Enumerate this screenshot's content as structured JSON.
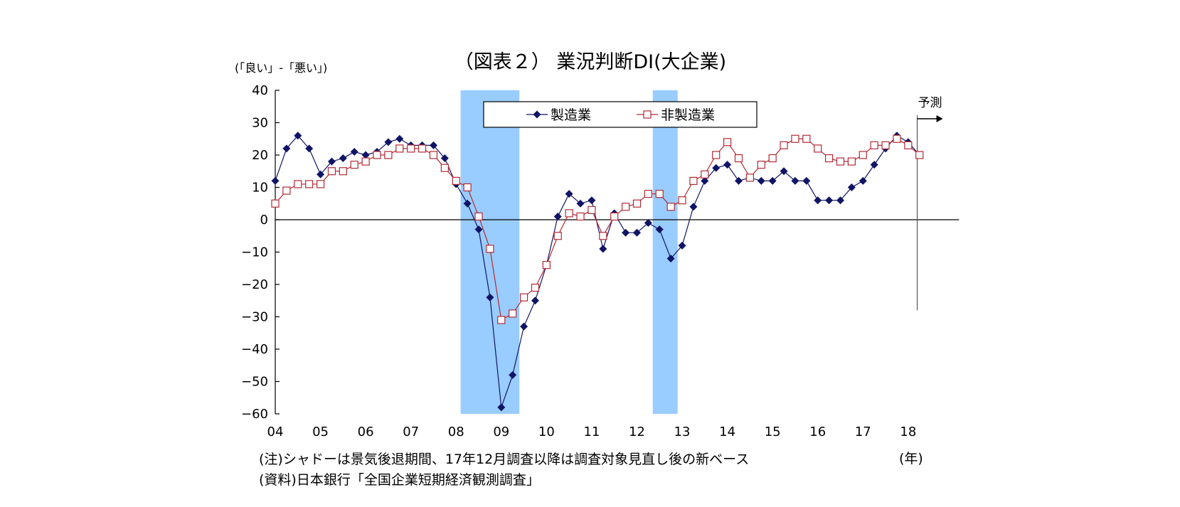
{
  "chart_data": {
    "type": "line",
    "title": "（図表２） 業況判断DI(大企業)",
    "ylabel": "(「良い」-「悪い」)",
    "xlabel": "(年)",
    "ylim": [
      -60,
      40
    ],
    "yticks": [
      40,
      30,
      20,
      10,
      0,
      -10,
      -20,
      -30,
      -40,
      -50,
      -60
    ],
    "ytick_labels": [
      "40",
      "30",
      "20",
      "10",
      "0",
      "−10",
      "−20",
      "−30",
      "−40",
      "−50",
      "−60"
    ],
    "year_labels": [
      "04",
      "05",
      "06",
      "07",
      "08",
      "09",
      "10",
      "11",
      "12",
      "13",
      "14",
      "15",
      "16",
      "17",
      "18"
    ],
    "x_start": "2004Q1",
    "grid": false,
    "legend_position": "top-center",
    "forecast_label": "予測",
    "shaded_periods": [
      {
        "start": "2008Q1",
        "end": "2009Q2"
      },
      {
        "start": "2012Q2",
        "end": "2012Q4"
      }
    ],
    "series": [
      {
        "name": "製造業",
        "color": "#101466",
        "marker": "filled-diamond",
        "values": [
          12,
          22,
          26,
          22,
          14,
          18,
          19,
          21,
          20,
          21,
          24,
          25,
          23,
          23,
          23,
          19,
          11,
          5,
          -3,
          -24,
          -58,
          -48,
          -33,
          -25,
          -14,
          1,
          8,
          5,
          6,
          -9,
          2,
          -4,
          -4,
          -1,
          -3,
          -12,
          -8,
          4,
          12,
          16,
          17,
          12,
          13,
          12,
          12,
          15,
          12,
          12,
          6,
          6,
          6,
          10,
          12,
          17,
          22,
          26,
          24,
          20
        ]
      },
      {
        "name": "非製造業",
        "color": "#b22a35",
        "marker": "hollow-square",
        "values": [
          5,
          9,
          11,
          11,
          11,
          15,
          15,
          17,
          18,
          20,
          20,
          22,
          22,
          22,
          20,
          16,
          12,
          10,
          1,
          -9,
          -31,
          -29,
          -24,
          -21,
          -14,
          -5,
          2,
          1,
          3,
          -5,
          1,
          4,
          5,
          8,
          8,
          4,
          6,
          12,
          14,
          20,
          24,
          19,
          13,
          17,
          19,
          23,
          25,
          25,
          22,
          19,
          18,
          18,
          20,
          23,
          23,
          25,
          23,
          20
        ]
      }
    ]
  },
  "notes": {
    "line1": "(注)シャドーは景気後退期間、17年12月調査以降は調査対象見直し後の新ベース",
    "line2": "(資料)日本銀行「全国企業短期経済観測調査」"
  }
}
